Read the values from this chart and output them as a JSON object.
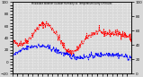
{
  "title": "Milwaukee Weather Outdoor Humidity vs. Temperature Every 5 Minutes",
  "bg_color": "#d8d8d8",
  "plot_bg": "#d8d8d8",
  "grid_color": "#ffffff",
  "temp_color": "#ff0000",
  "humid_color": "#0000ff",
  "temp_ylim": [
    -20,
    100
  ],
  "humid_ylim": [
    0,
    100
  ],
  "n_points": 288
}
